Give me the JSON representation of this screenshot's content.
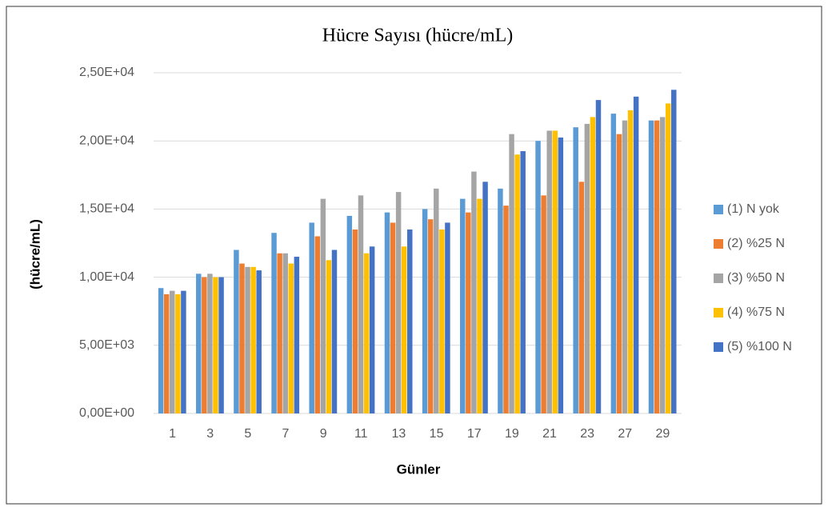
{
  "chart_data": {
    "type": "bar",
    "title": "Hücre Sayısı (hücre/mL)",
    "x_label": "Günler",
    "y_label": "(hücre/mL)",
    "categories": [
      "1",
      "3",
      "5",
      "7",
      "9",
      "11",
      "13",
      "15",
      "17",
      "19",
      "21",
      "23",
      "27",
      "29"
    ],
    "series": [
      {
        "name": "(1) N yok",
        "color": "#5b9bd5",
        "values": [
          9200,
          10250,
          12000,
          13250,
          14000,
          14500,
          14750,
          15000,
          15750,
          16500,
          20000,
          21000,
          22000,
          21500
        ]
      },
      {
        "name": "(2) %25 N",
        "color": "#ed7d31",
        "values": [
          8750,
          10000,
          11000,
          11750,
          13000,
          13500,
          14000,
          14250,
          14750,
          15250,
          16000,
          17000,
          20500,
          21500
        ]
      },
      {
        "name": "(3) %50 N",
        "color": "#a5a5a5",
        "values": [
          9000,
          10250,
          10750,
          11750,
          15750,
          16000,
          16250,
          16500,
          17750,
          20500,
          20750,
          21250,
          21500,
          21750
        ]
      },
      {
        "name": "(4) %75 N",
        "color": "#ffc000",
        "values": [
          8750,
          10000,
          10750,
          11000,
          11250,
          11750,
          12250,
          13500,
          15750,
          19000,
          20750,
          21750,
          22250,
          22750
        ]
      },
      {
        "name": "(5) %100 N",
        "color": "#4472c4",
        "values": [
          9000,
          10000,
          10500,
          11500,
          12000,
          12250,
          13500,
          14000,
          17000,
          19250,
          20250,
          23000,
          23250,
          23750
        ]
      }
    ],
    "ylim": [
      0,
      25000
    ],
    "yticks": [
      {
        "value": 0,
        "label": "0,00E+00"
      },
      {
        "value": 5000,
        "label": "5,00E+03"
      },
      {
        "value": 10000,
        "label": "1,00E+04"
      },
      {
        "value": 15000,
        "label": "1,50E+04"
      },
      {
        "value": 20000,
        "label": "2,00E+04"
      },
      {
        "value": 25000,
        "label": "2,50E+04"
      }
    ],
    "grid": true,
    "legend": "right"
  }
}
